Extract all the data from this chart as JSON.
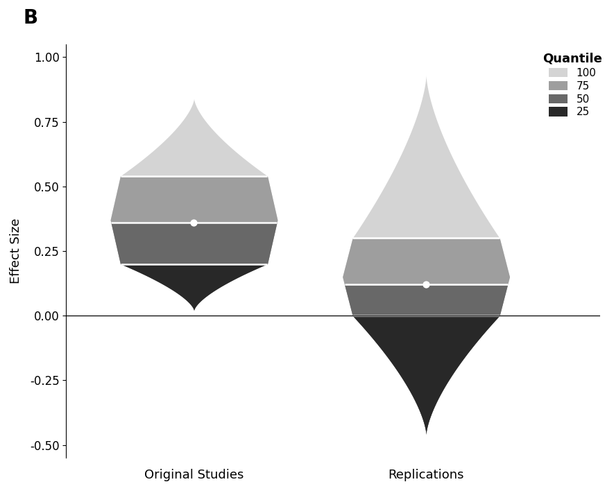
{
  "title": "B",
  "ylabel": "Effect Size",
  "xlabels": [
    "Original Studies",
    "Replications"
  ],
  "ylim": [
    -0.55,
    1.05
  ],
  "yticks": [
    -0.5,
    -0.25,
    0.0,
    0.25,
    0.5,
    0.75,
    1.0
  ],
  "orig_median": 0.36,
  "orig_q25": 0.2,
  "orig_q75": 0.54,
  "orig_min": 0.02,
  "orig_max": 0.84,
  "repl_median": 0.12,
  "repl_q25": 0.0,
  "repl_q75": 0.3,
  "repl_min": -0.46,
  "repl_max": 0.93,
  "color_100": "#d4d4d4",
  "color_75": "#9e9e9e",
  "color_50": "#686868",
  "color_25": "#282828",
  "background_color": "#ffffff",
  "zero_line_color": "#000000",
  "legend_title": "Quantile",
  "legend_labels": [
    "100",
    "75",
    "50",
    "25"
  ]
}
